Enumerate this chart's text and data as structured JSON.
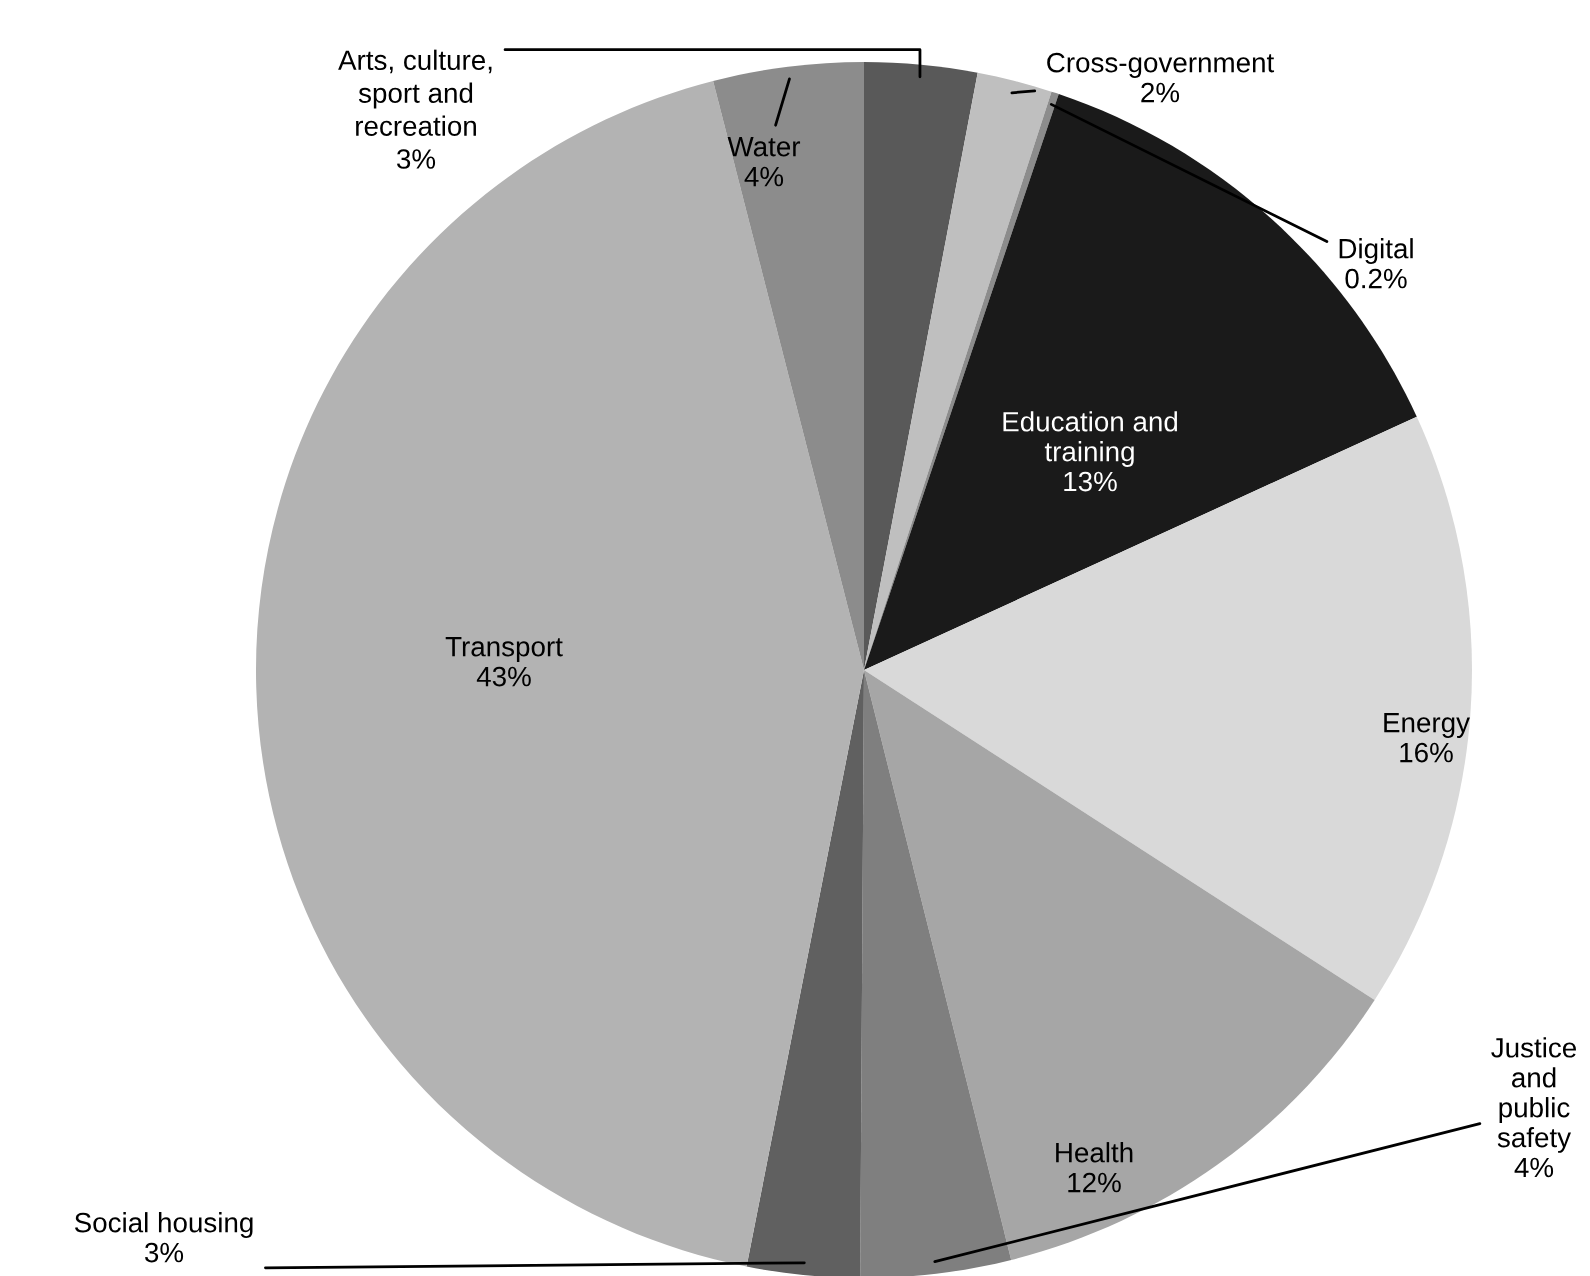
{
  "chart_data": {
    "type": "pie",
    "categories": [
      "Arts, culture,\nsport and\nrecreation",
      "Cross-government",
      "Digital",
      "Education and\ntraining",
      "Energy",
      "Health",
      "Justice\nand\npublic\nsafety",
      "Social housing",
      "Transport",
      "Water"
    ],
    "values": [
      3,
      2,
      0.2,
      13,
      16,
      12,
      4,
      3,
      43,
      4
    ],
    "colors": [
      "#595959",
      "#bfbfbf",
      "#8c8c8c",
      "#1a1a1a",
      "#d9d9d9",
      "#a6a6a6",
      "#7f7f7f",
      "#606060",
      "#b3b3b3",
      "#8c8c8c"
    ],
    "value_labels": [
      "3%",
      "2%",
      "0.2%",
      "13%",
      "16%",
      "12%",
      "4%",
      "3%",
      "43%",
      "4%"
    ],
    "legend": false
  }
}
